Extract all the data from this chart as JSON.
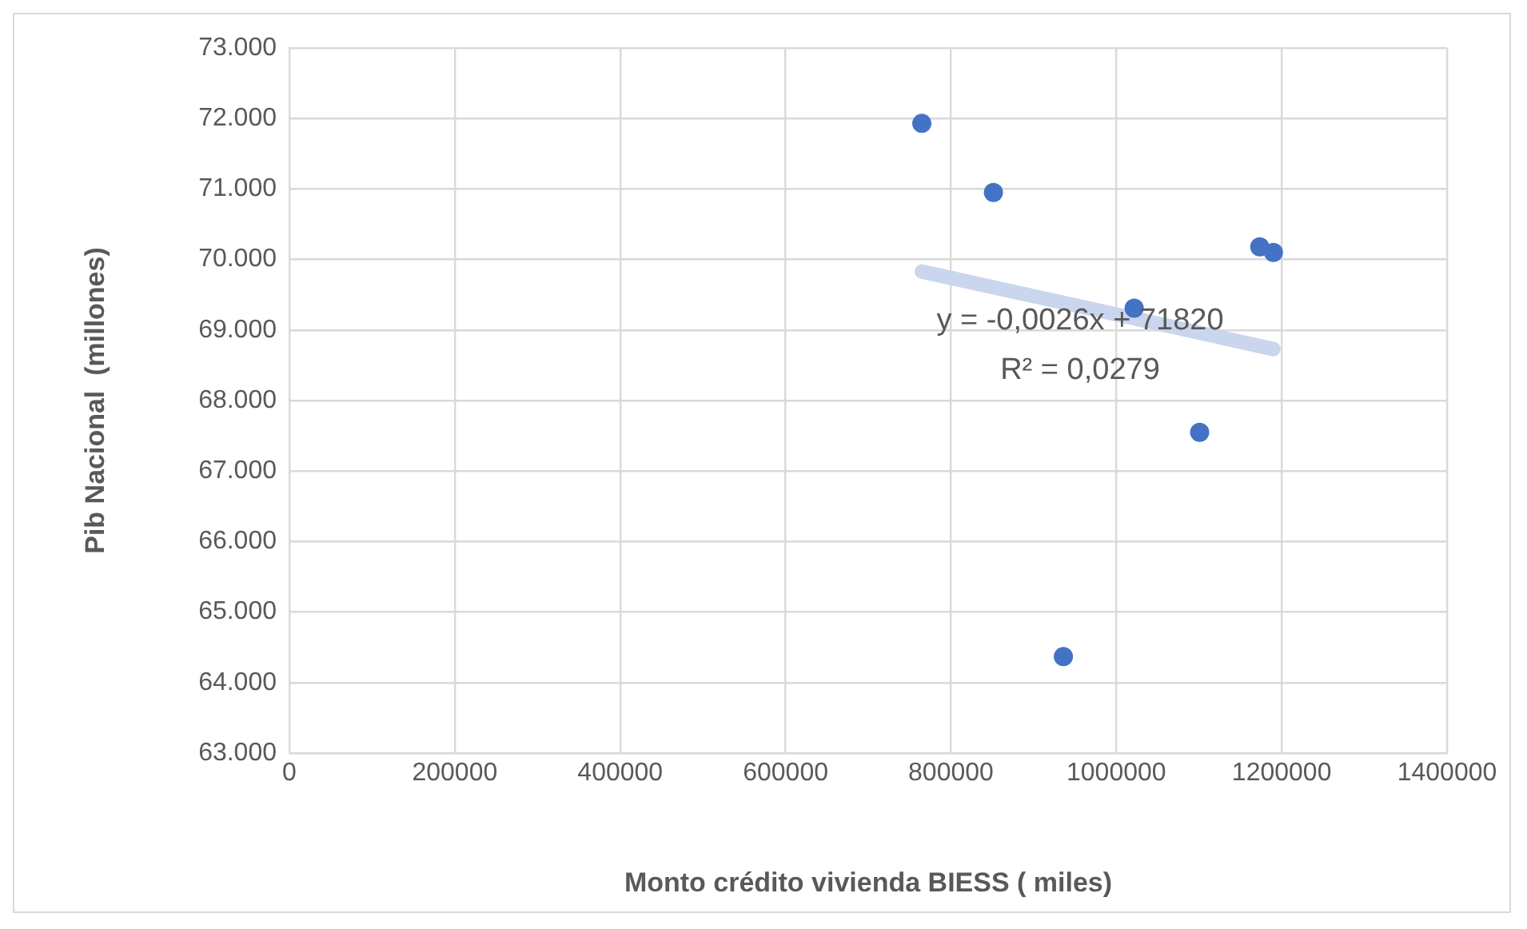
{
  "chart_data": {
    "type": "scatter",
    "xlabel": "Monto crédito vivienda BIESS ( miles)",
    "ylabel": "Pib Nacional  (millones)",
    "series": [
      {
        "type": "scatter",
        "color": "#4472c4",
        "x": [
          764800,
          851400,
          1021600,
          1173500,
          1190000,
          1100800,
          936000
        ],
        "values": [
          71930,
          70950,
          69310,
          70180,
          70100,
          67550,
          64370
        ]
      },
      {
        "type": "line",
        "color": "#c9d6ee",
        "marker": "none",
        "x": [
          764800,
          1190000
        ],
        "values": [
          69830,
          68730
        ]
      }
    ],
    "xlim": [
      0,
      1400000
    ],
    "xticks": [
      0,
      200000,
      400000,
      600000,
      800000,
      1000000,
      1200000,
      1400000
    ],
    "ylim": [
      63000,
      73000
    ],
    "yticks": [
      {
        "value": 63000,
        "label": "63.000"
      },
      {
        "value": 64000,
        "label": "64.000"
      },
      {
        "value": 65000,
        "label": "65.000"
      },
      {
        "value": 66000,
        "label": "66.000"
      },
      {
        "value": 67000,
        "label": "67.000"
      },
      {
        "value": 68000,
        "label": "68.000"
      },
      {
        "value": 69000,
        "label": "69.000"
      },
      {
        "value": 70000,
        "label": "70.000"
      },
      {
        "value": 71000,
        "label": "71.000"
      },
      {
        "value": 72000,
        "label": "72.000"
      },
      {
        "value": 73000,
        "label": "73.000"
      }
    ],
    "annotations": [
      "y = -0,0026x + 71820",
      "R² = 0,0279"
    ],
    "grid": true,
    "marker": "circle",
    "legend": false
  }
}
